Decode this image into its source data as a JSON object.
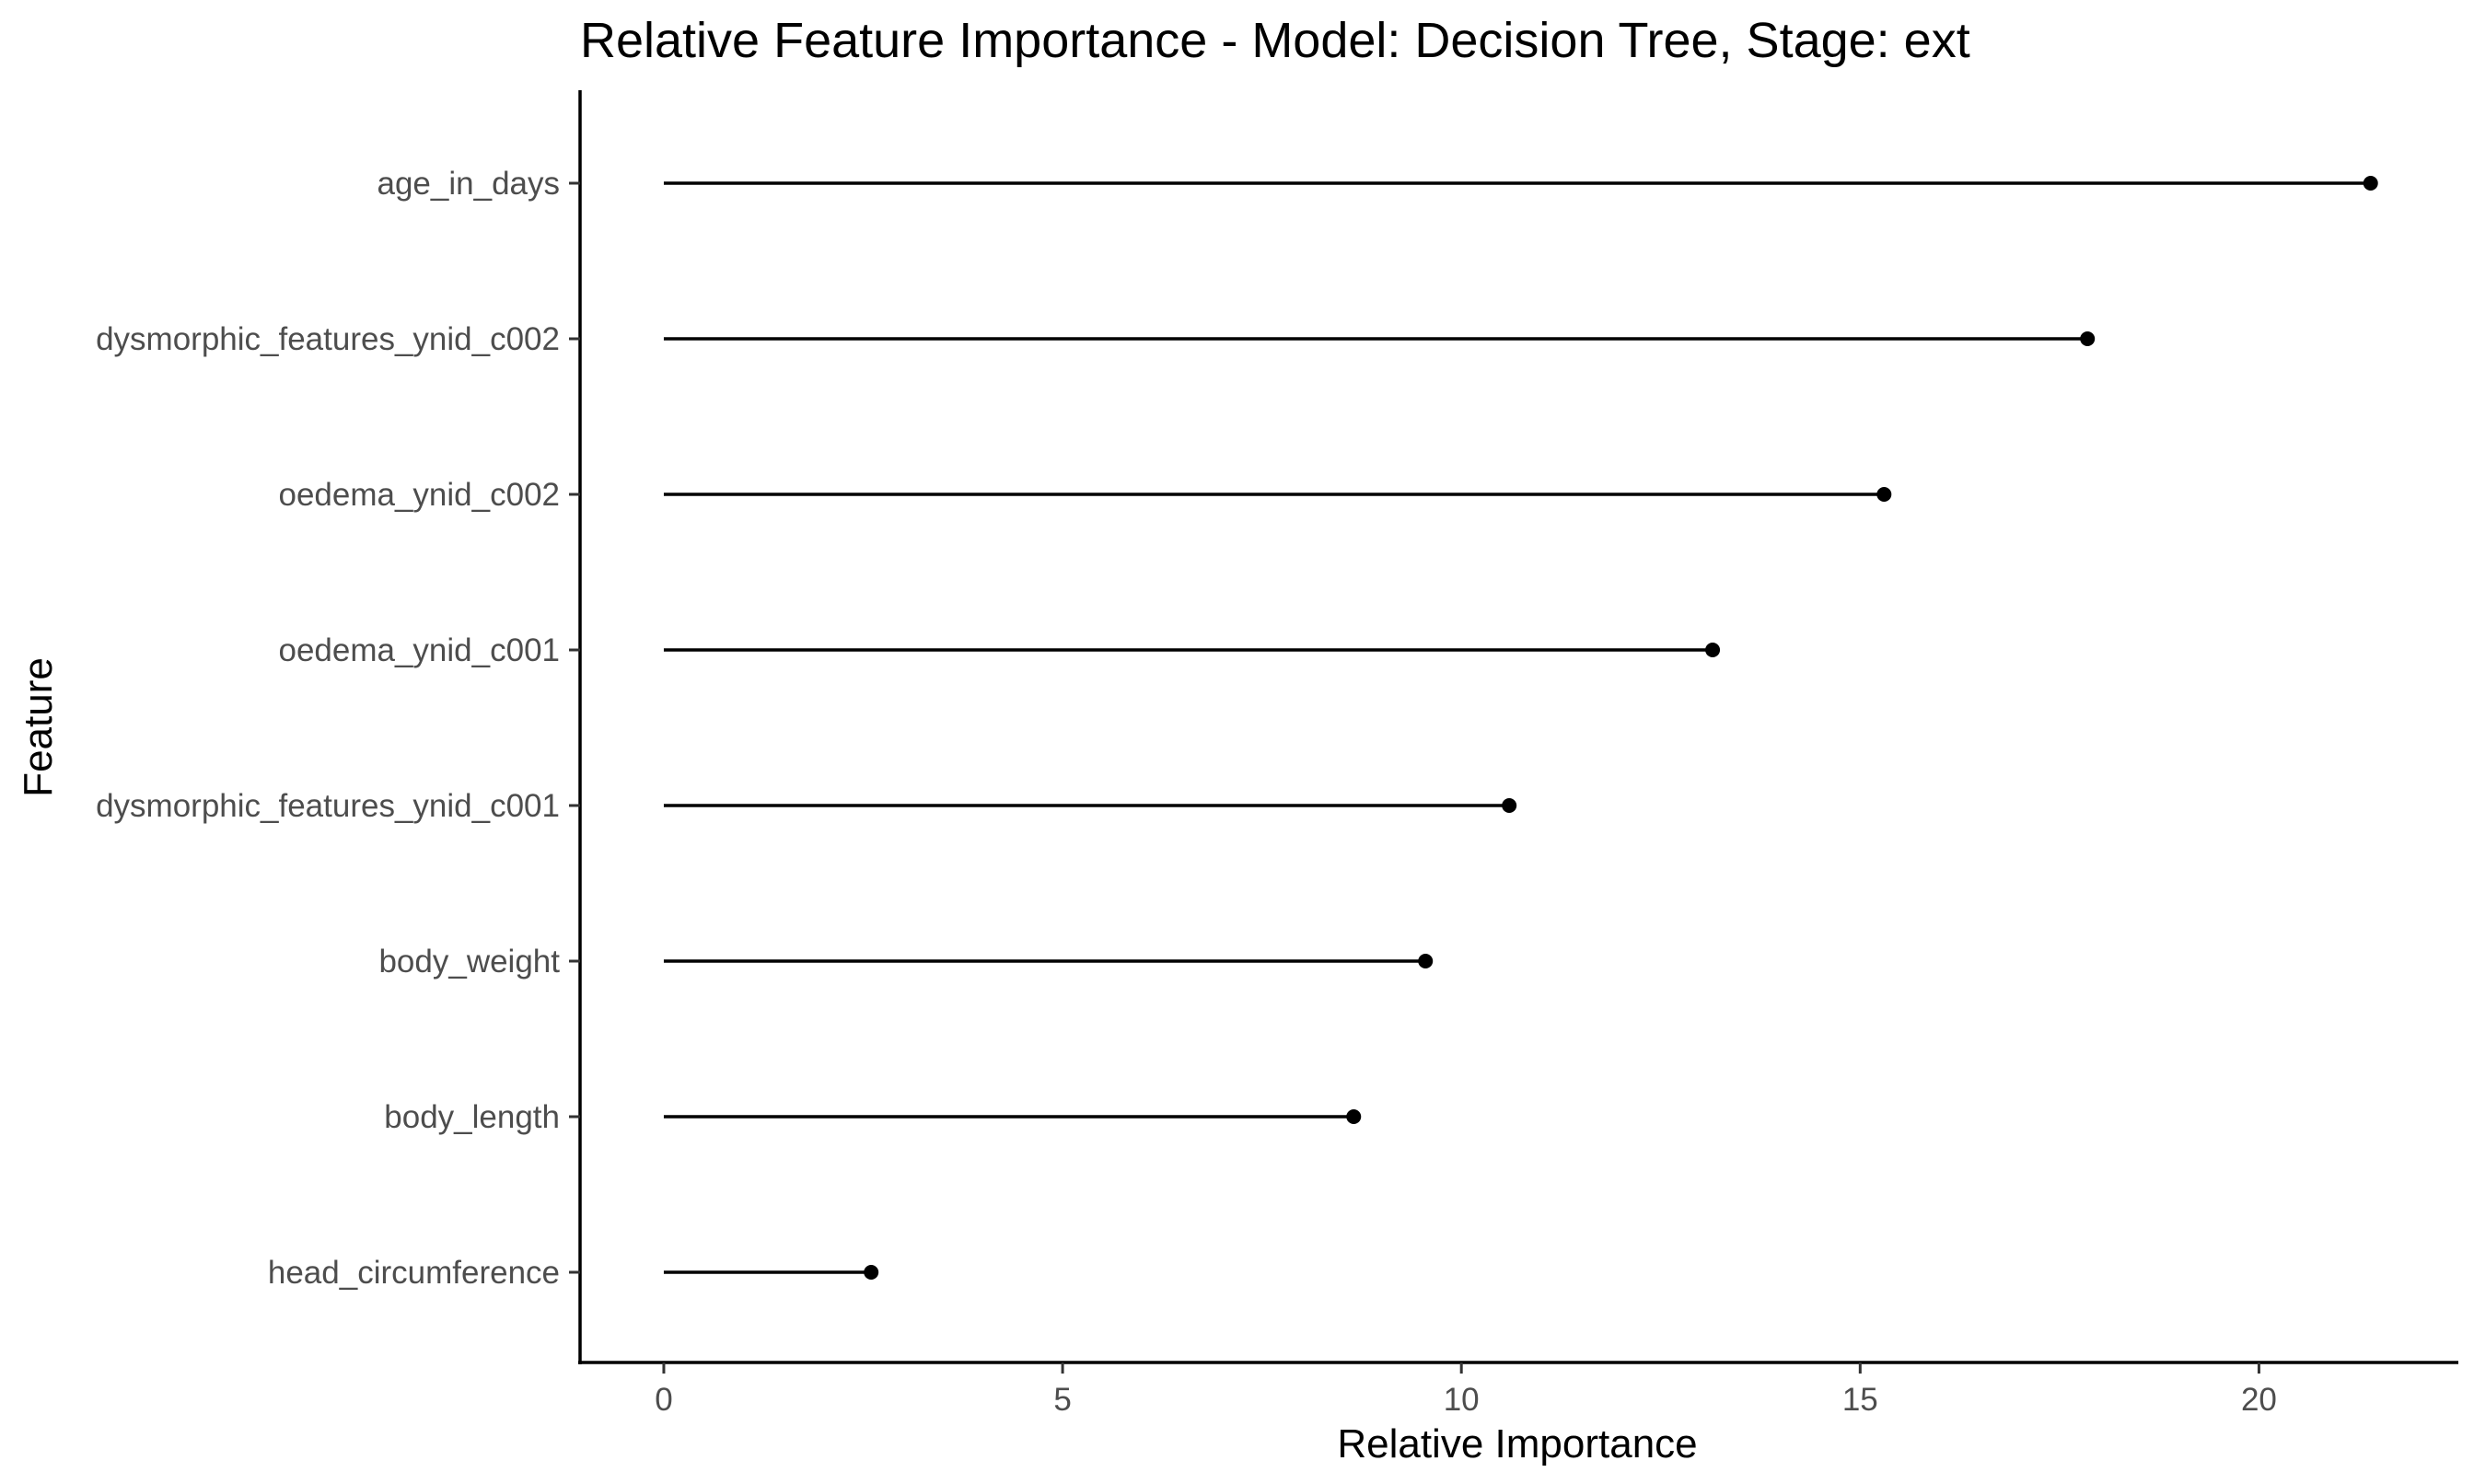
{
  "chart_data": {
    "type": "lollipop",
    "title": "Relative Feature Importance - Model: Decision Tree, Stage: ext",
    "xlabel": "Relative Importance",
    "ylabel": "Feature",
    "xlim": [
      -1.05,
      22.5
    ],
    "xticks": [
      0,
      5,
      10,
      15,
      20
    ],
    "xtick_labels": [
      "0",
      "5",
      "10",
      "15",
      "20"
    ],
    "grid": false,
    "legend": "none",
    "categories": [
      "age_in_days",
      "dysmorphic_features_ynid_c002",
      "oedema_ynid_c002",
      "oedema_ynid_c001",
      "dysmorphic_features_ynid_c001",
      "body_weight",
      "body_length",
      "head_circumference"
    ],
    "values": [
      21.4,
      17.85,
      15.3,
      13.15,
      10.6,
      9.55,
      8.65,
      2.6
    ],
    "colors": {
      "stem": "#000000",
      "point": "#000000",
      "tick_label": "#4d4d4d",
      "axis": "#000000"
    }
  }
}
